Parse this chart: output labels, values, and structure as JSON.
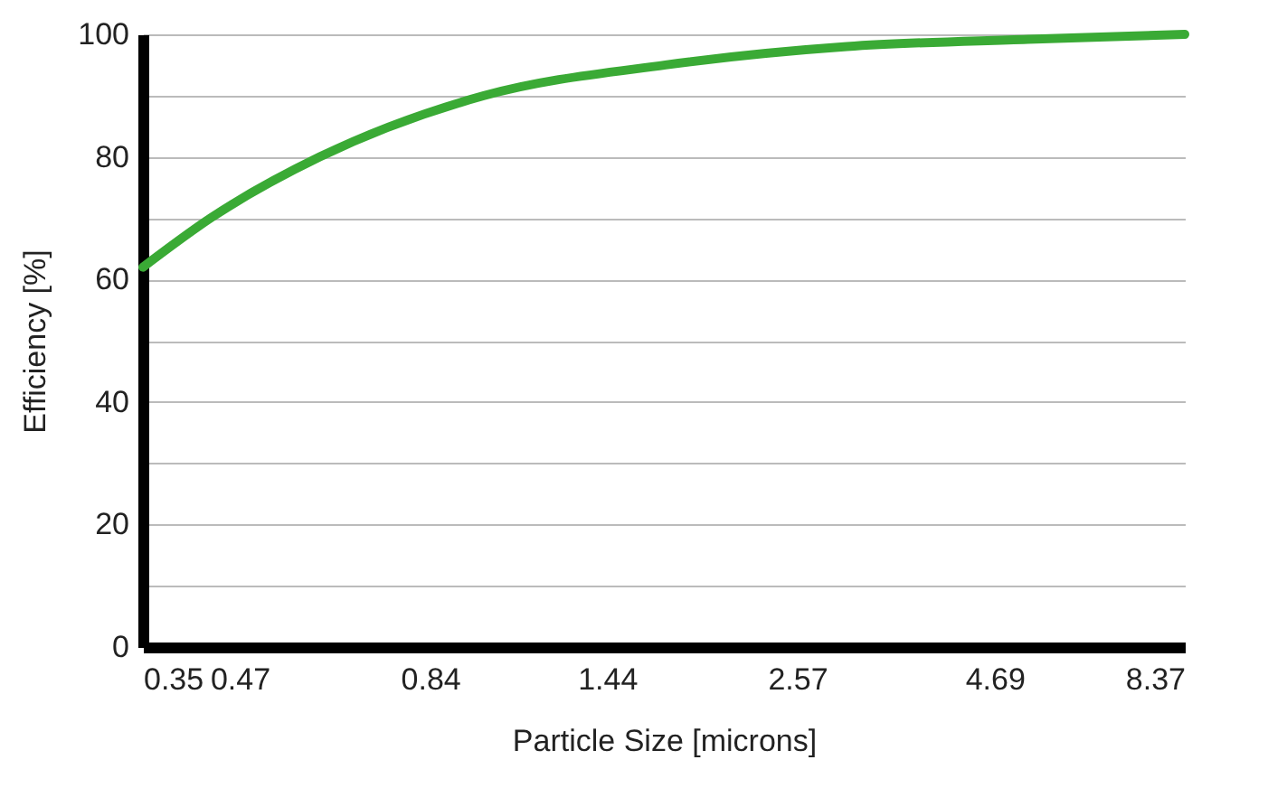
{
  "chart_data": {
    "type": "line",
    "xlabel": "Particle Size [microns]",
    "ylabel": "Efficiency [%]",
    "log": "x",
    "grid": "y",
    "marker": "none",
    "line_style": "solid",
    "xlim": [
      0.35,
      8.37
    ],
    "xticks": [
      0.35,
      0.47,
      0.84,
      1.44,
      2.57,
      4.69,
      8.37
    ],
    "ylim": [
      0,
      100
    ],
    "yticks": [
      0,
      {
        "value": 10,
        "label": null
      },
      20,
      {
        "value": 30,
        "label": null
      },
      40,
      {
        "value": 50,
        "label": null
      },
      60,
      {
        "value": 70,
        "label": null
      },
      80,
      {
        "value": 90,
        "label": null
      },
      100
    ],
    "x": [
      0.35,
      0.43,
      0.6,
      0.99,
      1.72,
      2.99,
      5.19,
      8.37
    ],
    "series": [
      {
        "color": "#3aaa35",
        "values": [
          62,
          70,
          80,
          90,
          95,
          98,
          99.2,
          100
        ]
      }
    ]
  }
}
